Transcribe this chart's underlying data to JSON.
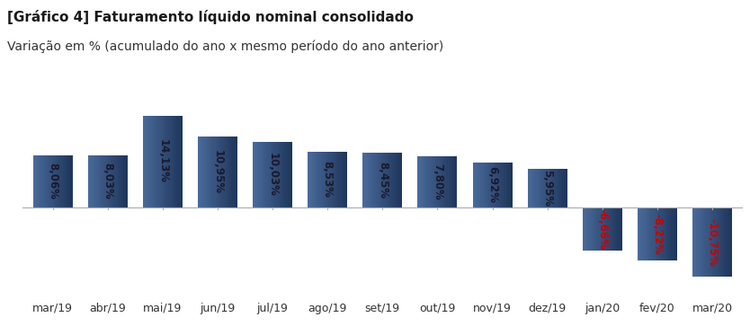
{
  "categories": [
    "mar/19",
    "abr/19",
    "mai/19",
    "jun/19",
    "jul/19",
    "ago/19",
    "set/19",
    "out/19",
    "nov/19",
    "dez/19",
    "jan/20",
    "fev/20",
    "mar/20"
  ],
  "values": [
    8.06,
    8.03,
    14.13,
    10.95,
    10.03,
    8.53,
    8.45,
    7.8,
    6.92,
    5.95,
    -6.66,
    -8.22,
    -10.75
  ],
  "labels": [
    "8,06%",
    "8,03%",
    "14,13%",
    "10,95%",
    "10,03%",
    "8,53%",
    "8,45%",
    "7,80%",
    "6,92%",
    "5,95%",
    "-6,66%",
    "-8,22%",
    "-10,75%"
  ],
  "bar_color": "#2E4A7A",
  "bar_color_light": "#4A6A9A",
  "label_color_positive": "#1a1a2e",
  "label_color_negative": "#cc0000",
  "title_bold": "[Gráfico 4] Faturamento líquido nominal consolidado",
  "subtitle": "Variação em % (acumulado do ano x mesmo período do ano anterior)",
  "ylim_min": -14,
  "ylim_max": 18,
  "background_color": "#ffffff",
  "title_fontsize": 11,
  "subtitle_fontsize": 10,
  "label_fontsize": 8.5,
  "tick_fontsize": 9
}
